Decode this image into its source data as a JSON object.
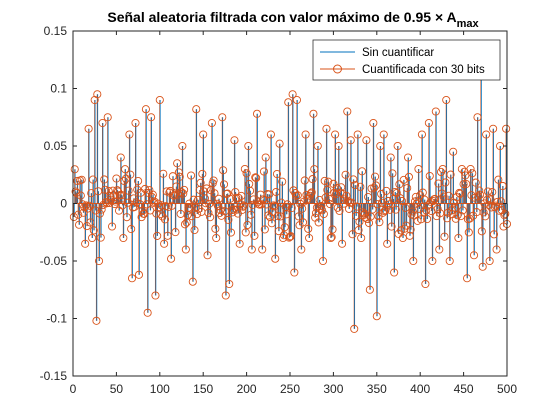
{
  "chart_data": {
    "type": "stem",
    "title": "Señal aleatoria filtrada con valor máximo de 0.95 × A",
    "title_subscript": "max",
    "xlabel": "",
    "ylabel": "",
    "xlim": [
      0,
      500
    ],
    "ylim": [
      -0.15,
      0.15
    ],
    "xticks": [
      "0",
      "50",
      "100",
      "150",
      "200",
      "250",
      "300",
      "350",
      "400",
      "450",
      "500"
    ],
    "yticks": [
      "-0.15",
      "-0.1",
      "-0.05",
      "0",
      "0.05",
      "0.1",
      "0.15"
    ],
    "grid": false,
    "legend_position": "top-right",
    "colors": {
      "sin_cuantificar": "#0072BD",
      "cuantificada": "#D95319",
      "axes": "#262626"
    },
    "series": [
      {
        "name": "Sin cuantificar",
        "style": "stem-line"
      },
      {
        "name": "Cuantificada con 30 bits",
        "style": "stem-circle"
      }
    ],
    "peaks": [
      {
        "x": 8,
        "y": 0.02
      },
      {
        "x": 14,
        "y": -0.035
      },
      {
        "x": 18,
        "y": 0.065
      },
      {
        "x": 22,
        "y": -0.03
      },
      {
        "x": 25,
        "y": 0.09
      },
      {
        "x": 27,
        "y": -0.102
      },
      {
        "x": 28,
        "y": 0.095
      },
      {
        "x": 30,
        "y": -0.05
      },
      {
        "x": 34,
        "y": 0.07
      },
      {
        "x": 40,
        "y": 0.075
      },
      {
        "x": 45,
        "y": -0.02
      },
      {
        "x": 55,
        "y": 0.04
      },
      {
        "x": 58,
        "y": -0.03
      },
      {
        "x": 65,
        "y": 0.06
      },
      {
        "x": 68,
        "y": -0.065
      },
      {
        "x": 72,
        "y": 0.07
      },
      {
        "x": 76,
        "y": -0.062
      },
      {
        "x": 84,
        "y": 0.082
      },
      {
        "x": 86,
        "y": -0.095
      },
      {
        "x": 90,
        "y": 0.075
      },
      {
        "x": 95,
        "y": -0.08
      },
      {
        "x": 100,
        "y": 0.09
      },
      {
        "x": 105,
        "y": -0.035
      },
      {
        "x": 113,
        "y": -0.048
      },
      {
        "x": 120,
        "y": 0.035
      },
      {
        "x": 126,
        "y": 0.05
      },
      {
        "x": 130,
        "y": -0.04
      },
      {
        "x": 138,
        "y": -0.068
      },
      {
        "x": 142,
        "y": 0.082
      },
      {
        "x": 150,
        "y": 0.06
      },
      {
        "x": 155,
        "y": -0.045
      },
      {
        "x": 160,
        "y": 0.07
      },
      {
        "x": 165,
        "y": -0.03
      },
      {
        "x": 172,
        "y": 0.075
      },
      {
        "x": 176,
        "y": -0.08
      },
      {
        "x": 180,
        "y": -0.07
      },
      {
        "x": 186,
        "y": 0.055
      },
      {
        "x": 192,
        "y": -0.035
      },
      {
        "x": 198,
        "y": 0.03
      },
      {
        "x": 202,
        "y": 0.05
      },
      {
        "x": 206,
        "y": -0.04
      },
      {
        "x": 212,
        "y": 0.078
      },
      {
        "x": 218,
        "y": -0.04
      },
      {
        "x": 222,
        "y": 0.04
      },
      {
        "x": 228,
        "y": 0.06
      },
      {
        "x": 233,
        "y": -0.048
      },
      {
        "x": 238,
        "y": 0.052
      },
      {
        "x": 242,
        "y": -0.03
      },
      {
        "x": 248,
        "y": 0.088
      },
      {
        "x": 253,
        "y": 0.095
      },
      {
        "x": 255,
        "y": -0.06
      },
      {
        "x": 258,
        "y": 0.09
      },
      {
        "x": 263,
        "y": -0.04
      },
      {
        "x": 268,
        "y": 0.06
      },
      {
        "x": 272,
        "y": -0.03
      },
      {
        "x": 277,
        "y": 0.078
      },
      {
        "x": 282,
        "y": 0.05
      },
      {
        "x": 288,
        "y": -0.05
      },
      {
        "x": 292,
        "y": 0.065
      },
      {
        "x": 297,
        "y": -0.03
      },
      {
        "x": 302,
        "y": 0.06
      },
      {
        "x": 306,
        "y": 0.05
      },
      {
        "x": 310,
        "y": -0.035
      },
      {
        "x": 316,
        "y": 0.08
      },
      {
        "x": 320,
        "y": 0.055
      },
      {
        "x": 324,
        "y": -0.109
      },
      {
        "x": 328,
        "y": 0.06
      },
      {
        "x": 332,
        "y": -0.03
      },
      {
        "x": 338,
        "y": 0.055
      },
      {
        "x": 342,
        "y": -0.075
      },
      {
        "x": 346,
        "y": 0.07
      },
      {
        "x": 350,
        "y": -0.098
      },
      {
        "x": 354,
        "y": 0.05
      },
      {
        "x": 358,
        "y": 0.06
      },
      {
        "x": 362,
        "y": -0.035
      },
      {
        "x": 366,
        "y": 0.04
      },
      {
        "x": 370,
        "y": -0.06
      },
      {
        "x": 374,
        "y": 0.05
      },
      {
        "x": 380,
        "y": -0.03
      },
      {
        "x": 386,
        "y": 0.04
      },
      {
        "x": 392,
        "y": -0.05
      },
      {
        "x": 398,
        "y": 0.03
      },
      {
        "x": 402,
        "y": 0.06
      },
      {
        "x": 406,
        "y": -0.07
      },
      {
        "x": 410,
        "y": 0.07
      },
      {
        "x": 414,
        "y": -0.05
      },
      {
        "x": 418,
        "y": 0.08
      },
      {
        "x": 422,
        "y": -0.04
      },
      {
        "x": 426,
        "y": 0.03
      },
      {
        "x": 430,
        "y": 0.09
      },
      {
        "x": 434,
        "y": -0.05
      },
      {
        "x": 438,
        "y": 0.045
      },
      {
        "x": 444,
        "y": -0.03
      },
      {
        "x": 448,
        "y": 0.03
      },
      {
        "x": 454,
        "y": -0.065
      },
      {
        "x": 458,
        "y": 0.03
      },
      {
        "x": 462,
        "y": -0.045
      },
      {
        "x": 466,
        "y": 0.075
      },
      {
        "x": 470,
        "y": 0.125
      },
      {
        "x": 472,
        "y": -0.055
      },
      {
        "x": 476,
        "y": 0.06
      },
      {
        "x": 480,
        "y": -0.05
      },
      {
        "x": 484,
        "y": 0.065
      },
      {
        "x": 488,
        "y": -0.04
      },
      {
        "x": 492,
        "y": 0.05
      },
      {
        "x": 496,
        "y": -0.02
      },
      {
        "x": 499,
        "y": 0.065
      }
    ]
  }
}
